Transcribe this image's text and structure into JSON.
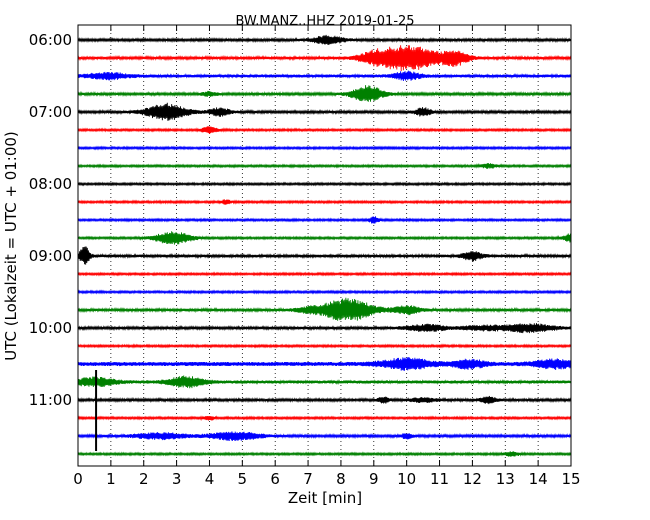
{
  "chart_data": {
    "type": "line",
    "subtype": "seismogram-helicorder",
    "title": "BW.MANZ..HHZ 2019-01-25",
    "xlabel": "Zeit  [min]",
    "ylabel": "UTC (Lokalzeit = UTC + 01:00)",
    "xlim": [
      0,
      15
    ],
    "x_ticks": [
      "0",
      "1",
      "2",
      "3",
      "4",
      "5",
      "6",
      "7",
      "8",
      "9",
      "10",
      "11",
      "12",
      "13",
      "14",
      "15"
    ],
    "y_tick_labels": [
      "06:00",
      "07:00",
      "08:00",
      "09:00",
      "10:00",
      "11:00"
    ],
    "y_tick_positions_minutes": [
      0,
      60,
      120,
      180,
      240,
      300
    ],
    "trace_interval_minutes": 15,
    "trace_colors": [
      "#000000",
      "#ff0000",
      "#0000ff",
      "#008000"
    ],
    "grid": "vertical-dotted",
    "traces": [
      {
        "start": "06:00",
        "color": "#000000",
        "base_amp": 1.2,
        "events": [
          {
            "t": 7.6,
            "amp": 4,
            "dur": 0.6
          }
        ]
      },
      {
        "start": "06:15",
        "color": "#ff0000",
        "base_amp": 1.3,
        "events": [
          {
            "t": 10.0,
            "amp": 12,
            "dur": 1.3
          },
          {
            "t": 11.5,
            "amp": 6,
            "dur": 0.5
          },
          {
            "t": 9.0,
            "amp": 3,
            "dur": 0.5
          }
        ]
      },
      {
        "start": "06:30",
        "color": "#0000ff",
        "base_amp": 1.5,
        "events": [
          {
            "t": 0.9,
            "amp": 3,
            "dur": 0.8
          },
          {
            "t": 10.0,
            "amp": 4,
            "dur": 0.5
          }
        ]
      },
      {
        "start": "06:45",
        "color": "#008000",
        "base_amp": 1.2,
        "events": [
          {
            "t": 8.8,
            "amp": 8,
            "dur": 0.6
          },
          {
            "t": 4.0,
            "amp": 2,
            "dur": 0.3
          }
        ]
      },
      {
        "start": "07:00",
        "color": "#000000",
        "base_amp": 1.2,
        "events": [
          {
            "t": 2.7,
            "amp": 8,
            "dur": 0.8
          },
          {
            "t": 4.3,
            "amp": 4,
            "dur": 0.4
          },
          {
            "t": 10.5,
            "amp": 4,
            "dur": 0.3
          }
        ]
      },
      {
        "start": "07:15",
        "color": "#ff0000",
        "base_amp": 1.0,
        "events": [
          {
            "t": 4.0,
            "amp": 3,
            "dur": 0.3
          }
        ]
      },
      {
        "start": "07:30",
        "color": "#0000ff",
        "base_amp": 1.0,
        "events": []
      },
      {
        "start": "07:45",
        "color": "#008000",
        "base_amp": 1.0,
        "events": [
          {
            "t": 12.5,
            "amp": 2,
            "dur": 0.3
          }
        ]
      },
      {
        "start": "08:00",
        "color": "#000000",
        "base_amp": 1.0,
        "events": []
      },
      {
        "start": "08:15",
        "color": "#ff0000",
        "base_amp": 1.0,
        "events": [
          {
            "t": 4.5,
            "amp": 2,
            "dur": 0.2
          }
        ]
      },
      {
        "start": "08:30",
        "color": "#0000ff",
        "base_amp": 1.0,
        "events": [
          {
            "t": 9.0,
            "amp": 3,
            "dur": 0.2
          }
        ]
      },
      {
        "start": "08:45",
        "color": "#008000",
        "base_amp": 1.0,
        "events": [
          {
            "t": 2.9,
            "amp": 6,
            "dur": 0.7
          },
          {
            "t": 15.0,
            "amp": 4,
            "dur": 0.3
          }
        ]
      },
      {
        "start": "09:00",
        "color": "#000000",
        "base_amp": 1.4,
        "events": [
          {
            "t": 0.2,
            "amp": 9,
            "dur": 0.2
          },
          {
            "t": 12.0,
            "amp": 4,
            "dur": 0.4
          }
        ]
      },
      {
        "start": "09:15",
        "color": "#ff0000",
        "base_amp": 1.0,
        "events": []
      },
      {
        "start": "09:30",
        "color": "#0000ff",
        "base_amp": 1.0,
        "events": []
      },
      {
        "start": "09:45",
        "color": "#008000",
        "base_amp": 1.3,
        "events": [
          {
            "t": 8.2,
            "amp": 11,
            "dur": 1.0
          },
          {
            "t": 10.0,
            "amp": 4,
            "dur": 0.5
          },
          {
            "t": 7.0,
            "amp": 2,
            "dur": 0.5
          }
        ]
      },
      {
        "start": "10:00",
        "color": "#000000",
        "base_amp": 1.3,
        "events": [
          {
            "t": 10.6,
            "amp": 3,
            "dur": 0.8
          },
          {
            "t": 13.7,
            "amp": 4,
            "dur": 1.0
          },
          {
            "t": 12.3,
            "amp": 2,
            "dur": 0.8
          }
        ]
      },
      {
        "start": "10:15",
        "color": "#ff0000",
        "base_amp": 1.0,
        "events": []
      },
      {
        "start": "10:30",
        "color": "#0000ff",
        "base_amp": 2.0,
        "events": [
          {
            "t": 10.0,
            "amp": 5,
            "dur": 1.0
          },
          {
            "t": 11.9,
            "amp": 4,
            "dur": 0.6
          },
          {
            "t": 14.5,
            "amp": 4,
            "dur": 0.8
          }
        ]
      },
      {
        "start": "10:45",
        "color": "#008000",
        "base_amp": 1.6,
        "events": [
          {
            "t": 0.5,
            "amp": 4,
            "dur": 0.8
          },
          {
            "t": 3.3,
            "amp": 5,
            "dur": 0.7
          }
        ]
      },
      {
        "start": "11:00",
        "color": "#000000",
        "base_amp": 1.2,
        "events": [
          {
            "t": 9.3,
            "amp": 3,
            "dur": 0.2
          },
          {
            "t": 12.5,
            "amp": 3,
            "dur": 0.3
          },
          {
            "t": 10.5,
            "amp": 2,
            "dur": 0.5
          }
        ]
      },
      {
        "start": "11:15",
        "color": "#ff0000",
        "base_amp": 1.0,
        "events": [
          {
            "t": 4.0,
            "amp": 2,
            "dur": 0.2
          }
        ]
      },
      {
        "start": "11:30",
        "color": "#0000ff",
        "base_amp": 1.2,
        "events": [
          {
            "t": 2.5,
            "amp": 3,
            "dur": 1.0
          },
          {
            "t": 4.8,
            "amp": 4,
            "dur": 1.0
          },
          {
            "t": 10.0,
            "amp": 3,
            "dur": 0.2
          }
        ]
      },
      {
        "start": "11:45",
        "color": "#008000",
        "base_amp": 1.0,
        "events": [
          {
            "t": 13.2,
            "amp": 2,
            "dur": 0.3
          }
        ]
      }
    ],
    "spikes": [
      {
        "t": 0.55,
        "from": "10:45",
        "to": "11:45",
        "color": "#000000"
      }
    ]
  }
}
